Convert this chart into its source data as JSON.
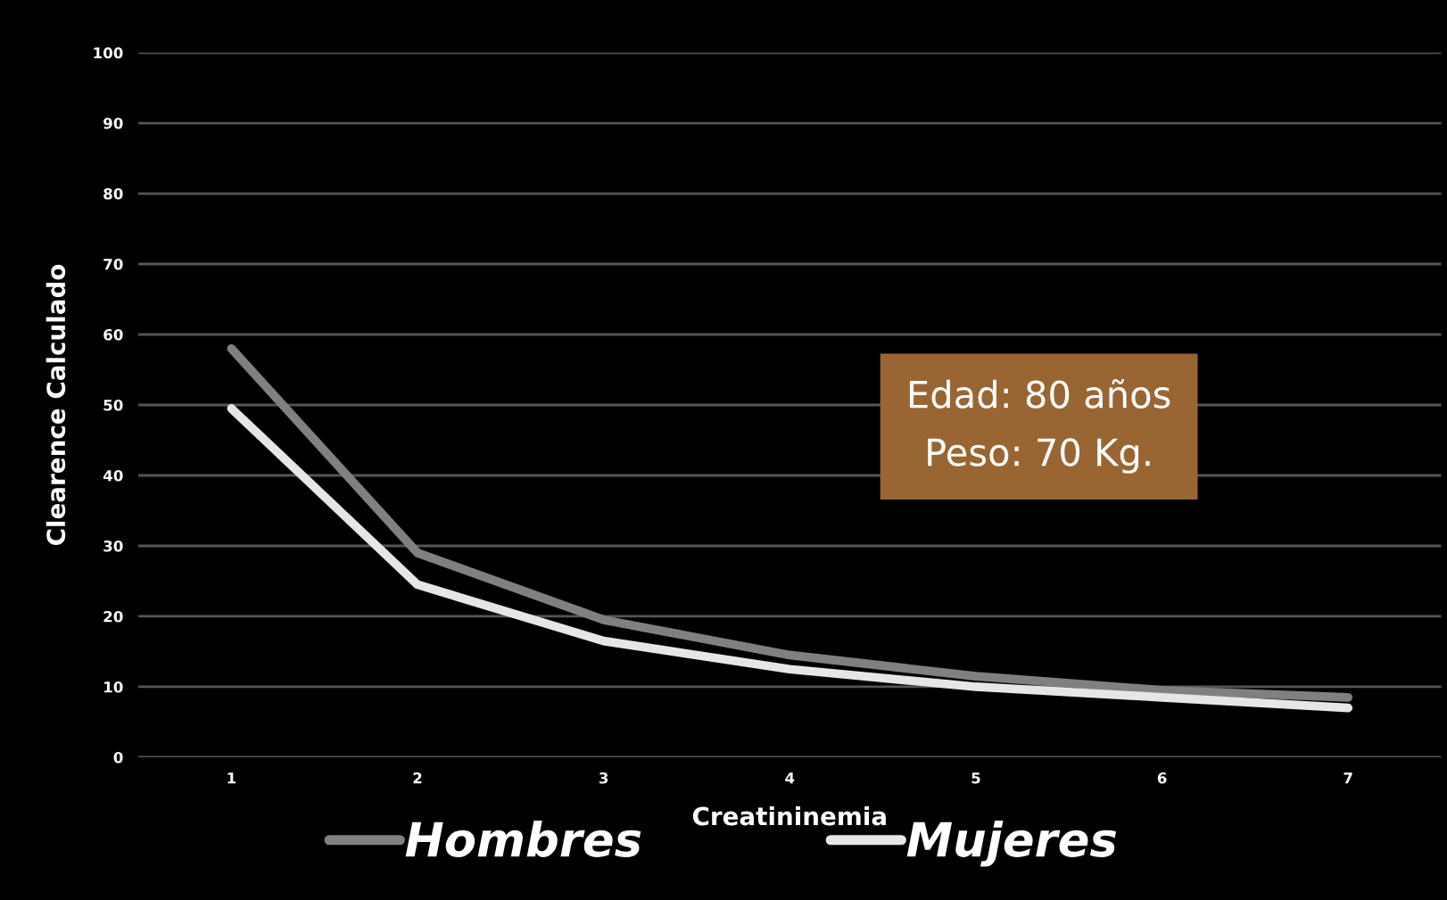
{
  "chart_data": {
    "type": "line",
    "xlabel": "Creatininemia",
    "ylabel": "Clearence Calculado",
    "categories": [
      "1",
      "2",
      "3",
      "4",
      "5",
      "6",
      "7"
    ],
    "series": [
      {
        "name": "Hombres",
        "color": "#808080",
        "values": [
          58,
          29,
          19.5,
          14.5,
          11.5,
          9.5,
          8.5
        ]
      },
      {
        "name": "Mujeres",
        "color": "#e6e6e6",
        "values": [
          49.5,
          24.5,
          16.5,
          12.5,
          10,
          8.5,
          7
        ]
      }
    ],
    "ylim": [
      0,
      100
    ],
    "yticks": [
      0,
      10,
      20,
      30,
      40,
      50,
      60,
      70,
      80,
      90,
      100
    ],
    "grid": "y",
    "legend": "bottom",
    "marker": "none",
    "line_style": "solid",
    "annotations": [
      "Edad: 80 años",
      "Peso: 70 Kg."
    ]
  }
}
